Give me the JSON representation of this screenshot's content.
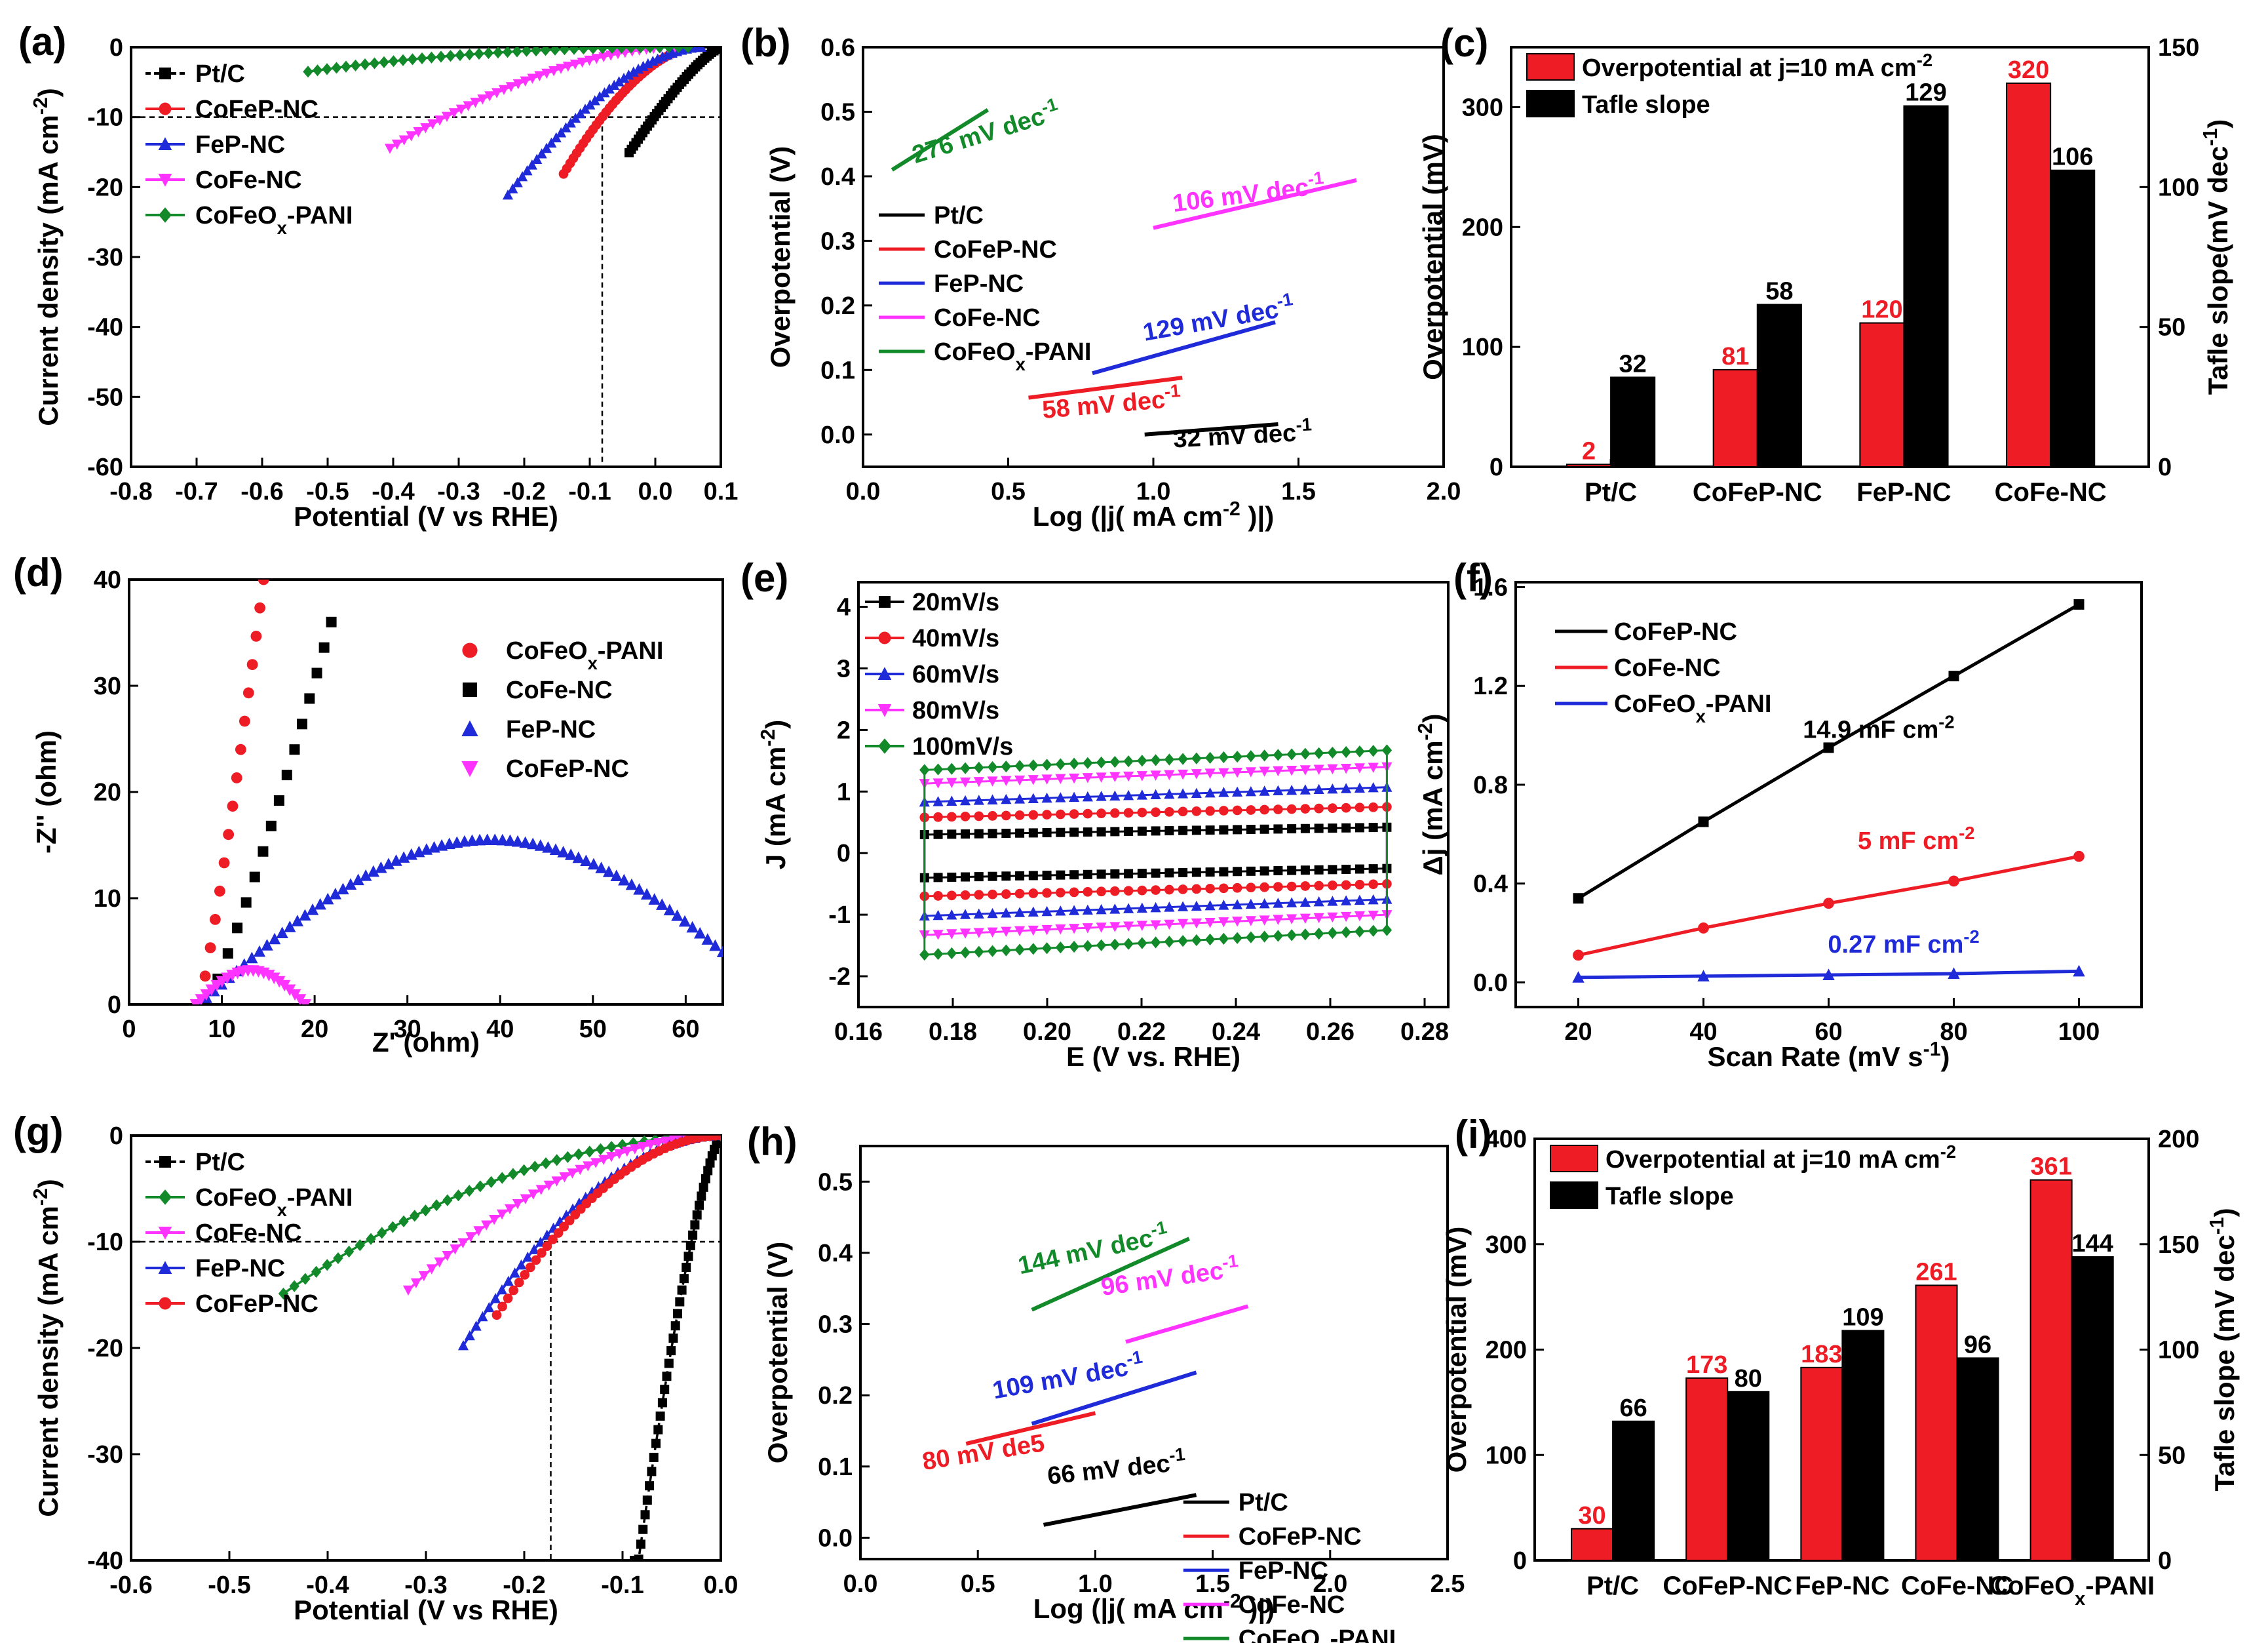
{
  "figure": {
    "colors": {
      "black": "#000000",
      "red": "#ee1c25",
      "blue": "#1f2ad9",
      "magenta": "#ff33ff",
      "green": "#128a2a"
    }
  },
  "chart_data": [
    {
      "id": "a",
      "letter": "(a)",
      "type": "line",
      "title": "",
      "xlabel": "Potential (V vs RHE)",
      "ylabel": "Current density (mA cm-2)",
      "xlim": [
        -0.8,
        0.1
      ],
      "ylim": [
        -60,
        0
      ],
      "xticks": [
        -0.8,
        -0.7,
        -0.6,
        -0.5,
        -0.4,
        -0.3,
        -0.2,
        -0.1,
        0.0,
        0.1
      ],
      "xticklabels": [
        "-0.8",
        "-0.7",
        "-0.6",
        "-0.5",
        "-0.4",
        "-0.3",
        "-0.2",
        "-0.1",
        "0.0",
        "0.1"
      ],
      "yticks": [
        0,
        -10,
        -20,
        -30,
        -40,
        -50,
        -60
      ],
      "yticklabels": [
        "0",
        "-10",
        "-20",
        "-30",
        "-40",
        "-50",
        "-60"
      ],
      "refline_y": -10,
      "refline_x": -0.081,
      "legend_position": "top-left",
      "series": [
        {
          "name": "Pt/C",
          "color": "black",
          "marker": "square",
          "dashed": true,
          "onset": -0.04,
          "v10": -0.002,
          "end": 0.1,
          "xmin": -0.04,
          "exp": 1.3,
          "min": -60
        },
        {
          "name": "CoFeP-NC",
          "color": "red",
          "marker": "circle",
          "onset": -0.14,
          "v10": -0.081,
          "end": 0.06,
          "xmin": -0.14,
          "exp": 1.7,
          "min": -60
        },
        {
          "name": "FeP-NC",
          "color": "blue",
          "marker": "triangle-up",
          "onset": -0.225,
          "v10": -0.12,
          "end": 0.07,
          "xmin": -0.225,
          "exp": 1.7,
          "min": -60
        },
        {
          "name": "CoFe-NC",
          "color": "magenta",
          "marker": "triangle-down",
          "onset": -0.405,
          "v10": -0.32,
          "end": 0.03,
          "xmin": -0.405,
          "exp": 1.7,
          "min": -60
        },
        {
          "name": "CoFeOx-PANI",
          "color": "green",
          "marker": "diamond",
          "onset": -0.53,
          "v10": -0.6,
          "end": 0.05,
          "xmin": -0.53,
          "exp": 1.5,
          "min": -3.5
        }
      ]
    },
    {
      "id": "b",
      "letter": "(b)",
      "type": "line",
      "title": "",
      "xlabel": "Log (|j( mA cm-2 )|)",
      "ylabel": "Overpotential (V)",
      "xlim": [
        0,
        2
      ],
      "ylim": [
        -0.05,
        0.6
      ],
      "xticks": [
        0,
        0.5,
        1,
        1.5,
        2
      ],
      "xticklabels": [
        "0.0",
        "0.5",
        "1.0",
        "1.5",
        "2.0"
      ],
      "yticks": [
        0,
        0.1,
        0.2,
        0.3,
        0.4,
        0.5,
        0.6
      ],
      "yticklabels": [
        "0.0",
        "0.1",
        "0.2",
        "0.3",
        "0.4",
        "0.5",
        "0.6"
      ],
      "legend_position": "middle-left",
      "legend": [
        "Pt/C",
        "CoFeP-NC",
        "FeP-NC",
        "CoFe-NC",
        "CoFeOx-PANI"
      ],
      "series": [
        {
          "name": "Pt/C",
          "color": "black",
          "x": [
            0.97,
            1.43
          ],
          "y": [
            0.0,
            0.016
          ]
        },
        {
          "name": "CoFeP-NC",
          "color": "red",
          "x": [
            0.57,
            1.1
          ],
          "y": [
            0.057,
            0.088
          ]
        },
        {
          "name": "FeP-NC",
          "color": "blue",
          "x": [
            0.79,
            1.42
          ],
          "y": [
            0.095,
            0.174
          ]
        },
        {
          "name": "CoFe-NC",
          "color": "magenta",
          "x": [
            1.0,
            1.7
          ],
          "y": [
            0.32,
            0.394
          ]
        },
        {
          "name": "CoFeOx-PANI",
          "color": "green",
          "x": [
            0.1,
            0.43
          ],
          "y": [
            0.41,
            0.503
          ]
        }
      ],
      "annotations": [
        {
          "text": "276 mV dec-1",
          "color": "green",
          "x": 0.18,
          "y": 0.42,
          "rotate": -17
        },
        {
          "text": "106 mV dec-1",
          "color": "magenta",
          "x": 1.07,
          "y": 0.345,
          "rotate": -7
        },
        {
          "text": "129 mV dec-1",
          "color": "blue",
          "x": 0.97,
          "y": 0.145,
          "rotate": -10
        },
        {
          "text": "58 mV dec-1",
          "color": "red",
          "x": 0.62,
          "y": 0.025,
          "rotate": -5
        },
        {
          "text": "32 mV dec-1",
          "color": "black",
          "x": 1.07,
          "y": -0.02,
          "rotate": -3
        }
      ]
    },
    {
      "id": "c",
      "letter": "(c)",
      "type": "bar",
      "title": "",
      "xlabel": "",
      "ylabel": "Overpotential (mV)",
      "y2label": "Tafle slope(mV dec-1)",
      "categories": [
        "Pt/C",
        "CoFeP-NC",
        "FeP-NC",
        "CoFe-NC"
      ],
      "ylim": [
        0,
        350
      ],
      "y2lim": [
        0,
        150
      ],
      "yticks": [
        0,
        100,
        200,
        300
      ],
      "yticklabels": [
        "0",
        "100",
        "200",
        "300"
      ],
      "y2ticks": [
        0,
        50,
        100,
        150
      ],
      "y2ticklabels": [
        "0",
        "50",
        "100",
        "150"
      ],
      "legend_position": "top-left",
      "series": [
        {
          "name": "Overpotential at j=10 mA cm-2",
          "color": "red",
          "axis": "left",
          "values": [
            2,
            81,
            120,
            320
          ],
          "labels": [
            "2",
            "81",
            "120",
            "320"
          ]
        },
        {
          "name": "Tafle slope",
          "color": "black",
          "axis": "right",
          "values": [
            32,
            58,
            129,
            106
          ],
          "labels": [
            "32",
            "58",
            "129",
            "106"
          ]
        }
      ]
    },
    {
      "id": "d",
      "letter": "(d)",
      "type": "scatter",
      "title": "",
      "xlabel": "Z' (ohm)",
      "ylabel": "-Z'' (ohm)",
      "xlim": [
        0,
        64
      ],
      "ylim": [
        0,
        40
      ],
      "xticks": [
        0,
        10,
        20,
        30,
        40,
        50,
        60
      ],
      "xticklabels": [
        "0",
        "10",
        "20",
        "30",
        "40",
        "50",
        "60"
      ],
      "yticks": [
        0,
        10,
        20,
        30,
        40
      ],
      "yticklabels": [
        "0",
        "10",
        "20",
        "30",
        "40"
      ],
      "legend_position": "top-right",
      "legend": [
        "CoFeOx-PANI",
        "CoFe-NC",
        "FeP-NC",
        "CoFeP-NC"
      ],
      "series": [
        {
          "name": "CoFeOx-PANI",
          "color": "red",
          "marker": "circle",
          "kind": "line",
          "x0": 7.5,
          "x1": 14.5,
          "y1": 40,
          "n": 16
        },
        {
          "name": "CoFe-NC",
          "color": "black",
          "marker": "square",
          "kind": "line",
          "x0": 8.2,
          "x1": 21.8,
          "y1": 36,
          "n": 16
        },
        {
          "name": "FeP-NC",
          "color": "blue",
          "marker": "triangle-up",
          "kind": "arc",
          "x0": 7.5,
          "xc": 39,
          "r": 34,
          "ymax": 15.5,
          "xend": 64,
          "n": 70
        },
        {
          "name": "CoFeP-NC",
          "color": "magenta",
          "marker": "triangle-down",
          "kind": "semi",
          "x0": 7.2,
          "x1": 19,
          "ymax": 3.2,
          "n": 22
        }
      ]
    },
    {
      "id": "e",
      "letter": "(e)",
      "type": "line",
      "title": "",
      "xlabel": "E (V vs. RHE)",
      "ylabel": "J (mA cm-2)",
      "xlim": [
        0.16,
        0.285
      ],
      "ylim": [
        -2.5,
        4.4
      ],
      "xticks": [
        0.16,
        0.18,
        0.2,
        0.22,
        0.24,
        0.26,
        0.28
      ],
      "xticklabels": [
        "0.16",
        "0.18",
        "0.20",
        "0.22",
        "0.24",
        "0.26",
        "0.28"
      ],
      "yticks": [
        -2,
        -1,
        0,
        1,
        2,
        3,
        4
      ],
      "yticklabels": [
        "-2",
        "-1",
        "0",
        "1",
        "2",
        "3",
        "4"
      ],
      "legend_position": "top-left",
      "series": [
        {
          "name": "20mV/s",
          "color": "black",
          "marker": "square",
          "top": [
            0.3,
            0.42
          ],
          "bottom": [
            -0.4,
            -0.25
          ]
        },
        {
          "name": "40mV/s",
          "color": "red",
          "marker": "circle",
          "top": [
            0.58,
            0.75
          ],
          "bottom": [
            -0.7,
            -0.5
          ]
        },
        {
          "name": "60mV/s",
          "color": "blue",
          "marker": "triangle-up",
          "top": [
            0.83,
            1.07
          ],
          "bottom": [
            -1.02,
            -0.75
          ]
        },
        {
          "name": "80mV/s",
          "color": "magenta",
          "marker": "triangle-down",
          "top": [
            1.13,
            1.4
          ],
          "bottom": [
            -1.33,
            -1.0
          ]
        },
        {
          "name": "100mV/s",
          "color": "green",
          "marker": "diamond",
          "top": [
            1.35,
            1.67
          ],
          "bottom": [
            -1.65,
            -1.25
          ]
        }
      ]
    },
    {
      "id": "f",
      "letter": "(f)",
      "type": "line",
      "title": "",
      "xlabel": "Scan Rate (mV s-1)",
      "ylabel": "Δj (mA cm-2)",
      "xlim": [
        10,
        110
      ],
      "ylim": [
        -0.1,
        1.62
      ],
      "xticks": [
        20,
        40,
        60,
        80,
        100
      ],
      "xticklabels": [
        "20",
        "40",
        "60",
        "80",
        "100"
      ],
      "yticks": [
        0,
        0.4,
        0.8,
        1.2,
        1.6
      ],
      "yticklabels": [
        "0.0",
        "0.4",
        "0.8",
        "1.2",
        "1.6"
      ],
      "legend_position": "top-left",
      "series": [
        {
          "name": "CoFeP-NC",
          "color": "black",
          "marker": "square",
          "x": [
            20,
            40,
            60,
            80,
            100
          ],
          "y": [
            0.34,
            0.65,
            0.95,
            1.24,
            1.53
          ]
        },
        {
          "name": "CoFe-NC",
          "color": "red",
          "marker": "circle",
          "x": [
            20,
            40,
            60,
            80,
            100
          ],
          "y": [
            0.11,
            0.22,
            0.32,
            0.41,
            0.51
          ]
        },
        {
          "name": "CoFeOx-PANI",
          "color": "blue",
          "marker": "triangle-up",
          "x": [
            20,
            40,
            60,
            80,
            100
          ],
          "y": [
            0.02,
            0.025,
            0.03,
            0.035,
            0.045
          ]
        }
      ],
      "annotations": [
        {
          "text": "14.9 mF cm-2",
          "color": "black",
          "x": 68,
          "y": 0.99
        },
        {
          "text": "5 mF cm-2",
          "color": "red",
          "x": 74,
          "y": 0.54
        },
        {
          "text": "0.27 mF cm-2",
          "color": "blue",
          "x": 72,
          "y": 0.12
        }
      ]
    },
    {
      "id": "g",
      "letter": "(g)",
      "type": "line",
      "title": "",
      "xlabel": "Potential (V vs RHE)",
      "ylabel": "Current density (mA cm-2)",
      "xlim": [
        -0.6,
        0.0
      ],
      "ylim": [
        -40,
        0
      ],
      "xticks": [
        -0.6,
        -0.5,
        -0.4,
        -0.3,
        -0.2,
        -0.1,
        0.0
      ],
      "xticklabels": [
        "-0.6",
        "-0.5",
        "-0.4",
        "-0.3",
        "-0.2",
        "-0.1",
        "0.0"
      ],
      "yticks": [
        0,
        -10,
        -20,
        -30,
        -40
      ],
      "yticklabels": [
        "0",
        "-10",
        "-20",
        "-30",
        "-40"
      ],
      "refline_y": -10,
      "refline_x": -0.173,
      "legend_position": "top-left",
      "legend": [
        "Pt/C",
        "CoFeOx-PANI",
        "CoFe-NC",
        "FeP-NC",
        "CoFeP-NC"
      ],
      "series": [
        {
          "name": "Pt/C",
          "color": "black",
          "marker": "square",
          "dashed": true,
          "onset": -0.088,
          "v10": -0.03,
          "end": 0.0,
          "xmin": -0.088,
          "exp": 1.35,
          "min": -40
        },
        {
          "name": "CoFeOx-PANI",
          "color": "green",
          "marker": "diamond",
          "onset": -0.445,
          "v10": -0.361,
          "end": 0.0,
          "xmin": -0.445,
          "exp": 1.9,
          "min": -40
        },
        {
          "name": "CoFe-NC",
          "color": "magenta",
          "marker": "triangle-down",
          "onset": -0.318,
          "v10": -0.261,
          "end": 0.0,
          "xmin": -0.318,
          "exp": 1.9,
          "min": -40
        },
        {
          "name": "FeP-NC",
          "color": "blue",
          "marker": "triangle-up",
          "onset": -0.262,
          "v10": -0.183,
          "end": 0.0,
          "xmin": -0.262,
          "exp": 1.9,
          "min": -40
        },
        {
          "name": "CoFeP-NC",
          "color": "red",
          "marker": "circle",
          "onset": -0.228,
          "v10": -0.173,
          "end": 0.0,
          "xmin": -0.228,
          "exp": 1.9,
          "min": -40
        }
      ]
    },
    {
      "id": "h",
      "letter": "(h)",
      "type": "line",
      "title": "",
      "xlabel": "Log (|j( mA cm-2 )|)",
      "ylabel": "Overpotential (V)",
      "xlim": [
        0,
        2.5
      ],
      "ylim": [
        -0.03,
        0.55
      ],
      "xticks": [
        0,
        0.5,
        1,
        1.5,
        2,
        2.5
      ],
      "xticklabels": [
        "0.0",
        "0.5",
        "1.0",
        "1.5",
        "2.0",
        "2.5"
      ],
      "yticks": [
        0,
        0.1,
        0.2,
        0.3,
        0.4,
        0.5
      ],
      "yticklabels": [
        "0.0",
        "0.1",
        "0.2",
        "0.3",
        "0.4",
        "0.5"
      ],
      "legend_position": "bottom-right",
      "legend": [
        "Pt/C",
        "CoFeP-NC",
        "FeP-NC",
        "CoFe-NC",
        "CoFeOx-PANI"
      ],
      "series": [
        {
          "name": "Pt/C",
          "color": "black",
          "x": [
            0.78,
            1.43
          ],
          "y": [
            0.018,
            0.06
          ]
        },
        {
          "name": "CoFeP-NC",
          "color": "red",
          "x": [
            0.45,
            1.0
          ],
          "y": [
            0.132,
            0.175
          ]
        },
        {
          "name": "FeP-NC",
          "color": "blue",
          "x": [
            0.73,
            1.43
          ],
          "y": [
            0.16,
            0.232
          ]
        },
        {
          "name": "CoFe-NC",
          "color": "magenta",
          "x": [
            1.13,
            1.65
          ],
          "y": [
            0.275,
            0.325
          ]
        },
        {
          "name": "CoFeOx-PANI",
          "color": "green",
          "x": [
            0.73,
            1.4
          ],
          "y": [
            0.32,
            0.42
          ]
        }
      ],
      "annotations": [
        {
          "text": "144 mV dec-1",
          "color": "green",
          "x": 0.68,
          "y": 0.37,
          "rotate": -12
        },
        {
          "text": "96 mV dec-1",
          "color": "magenta",
          "x": 1.03,
          "y": 0.34,
          "rotate": -8
        },
        {
          "text": "109 mV dec-1",
          "color": "blue",
          "x": 0.57,
          "y": 0.195,
          "rotate": -10
        },
        {
          "text": "80 mV de5",
          "color": "red",
          "x": 0.27,
          "y": 0.095,
          "rotate": -9
        },
        {
          "text": "66 mV dec-1",
          "color": "black",
          "x": 0.8,
          "y": 0.075,
          "rotate": -6
        }
      ]
    },
    {
      "id": "i",
      "letter": "(i)",
      "type": "bar",
      "title": "",
      "xlabel": "",
      "ylabel": "Overpotential (mV)",
      "y2label": "Tafle slope (mV dec-1)",
      "categories": [
        "Pt/C",
        "CoFeP-NC",
        "FeP-NC",
        "CoFe-NC",
        "CoFeOx-PANI"
      ],
      "ylim": [
        0,
        400
      ],
      "y2lim": [
        0,
        200
      ],
      "yticks": [
        0,
        100,
        200,
        300,
        400
      ],
      "yticklabels": [
        "0",
        "100",
        "200",
        "300",
        "400"
      ],
      "y2ticks": [
        0,
        50,
        100,
        150,
        200
      ],
      "y2ticklabels": [
        "0",
        "50",
        "100",
        "150",
        "200"
      ],
      "legend_position": "top-left",
      "series": [
        {
          "name": "Overpotential at j=10 mA cm-2",
          "color": "red",
          "axis": "left",
          "values": [
            30,
            173,
            183,
            261,
            361
          ],
          "labels": [
            "30",
            "173",
            "183",
            "261",
            "361"
          ]
        },
        {
          "name": "Tafle slope",
          "color": "black",
          "axis": "right",
          "values": [
            66,
            80,
            109,
            96,
            144
          ],
          "labels": [
            "66",
            "80",
            "109",
            "96",
            "144"
          ]
        }
      ]
    }
  ]
}
